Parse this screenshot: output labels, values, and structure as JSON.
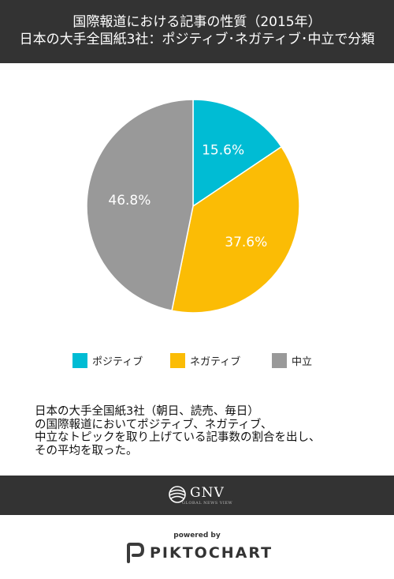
{
  "header": {
    "title_line1": "国際報道における記事の性質（2015年）",
    "title_line2": "日本の大手全国紙3社：ポジティブ･ネガティブ･中立で分類"
  },
  "chart_data": {
    "type": "pie",
    "slices": [
      {
        "label": "ポジティブ",
        "value": 15.6,
        "value_label": "15.6%",
        "color": "#00bcd4"
      },
      {
        "label": "ネガティブ",
        "value": 37.6,
        "value_label": "37.6%",
        "color": "#fbbc05"
      },
      {
        "label": "中立",
        "value": 46.8,
        "value_label": "46.8%",
        "color": "#999999"
      }
    ],
    "legend_position": "bottom"
  },
  "note": {
    "lines": [
      "日本の大手全国紙3社（朝日、読売、毎日）",
      "の国際報道においてポジティブ、ネガティブ、",
      "中立なトピックを取り上げている記事数の割合を出し、",
      "その平均を取った。"
    ]
  },
  "footer": {
    "logo_text": "GNV",
    "logo_subtext": "GLOBAL NEWS VIEW"
  },
  "branding": {
    "powered_by": "powered by",
    "name": "PIKTOCHART"
  }
}
